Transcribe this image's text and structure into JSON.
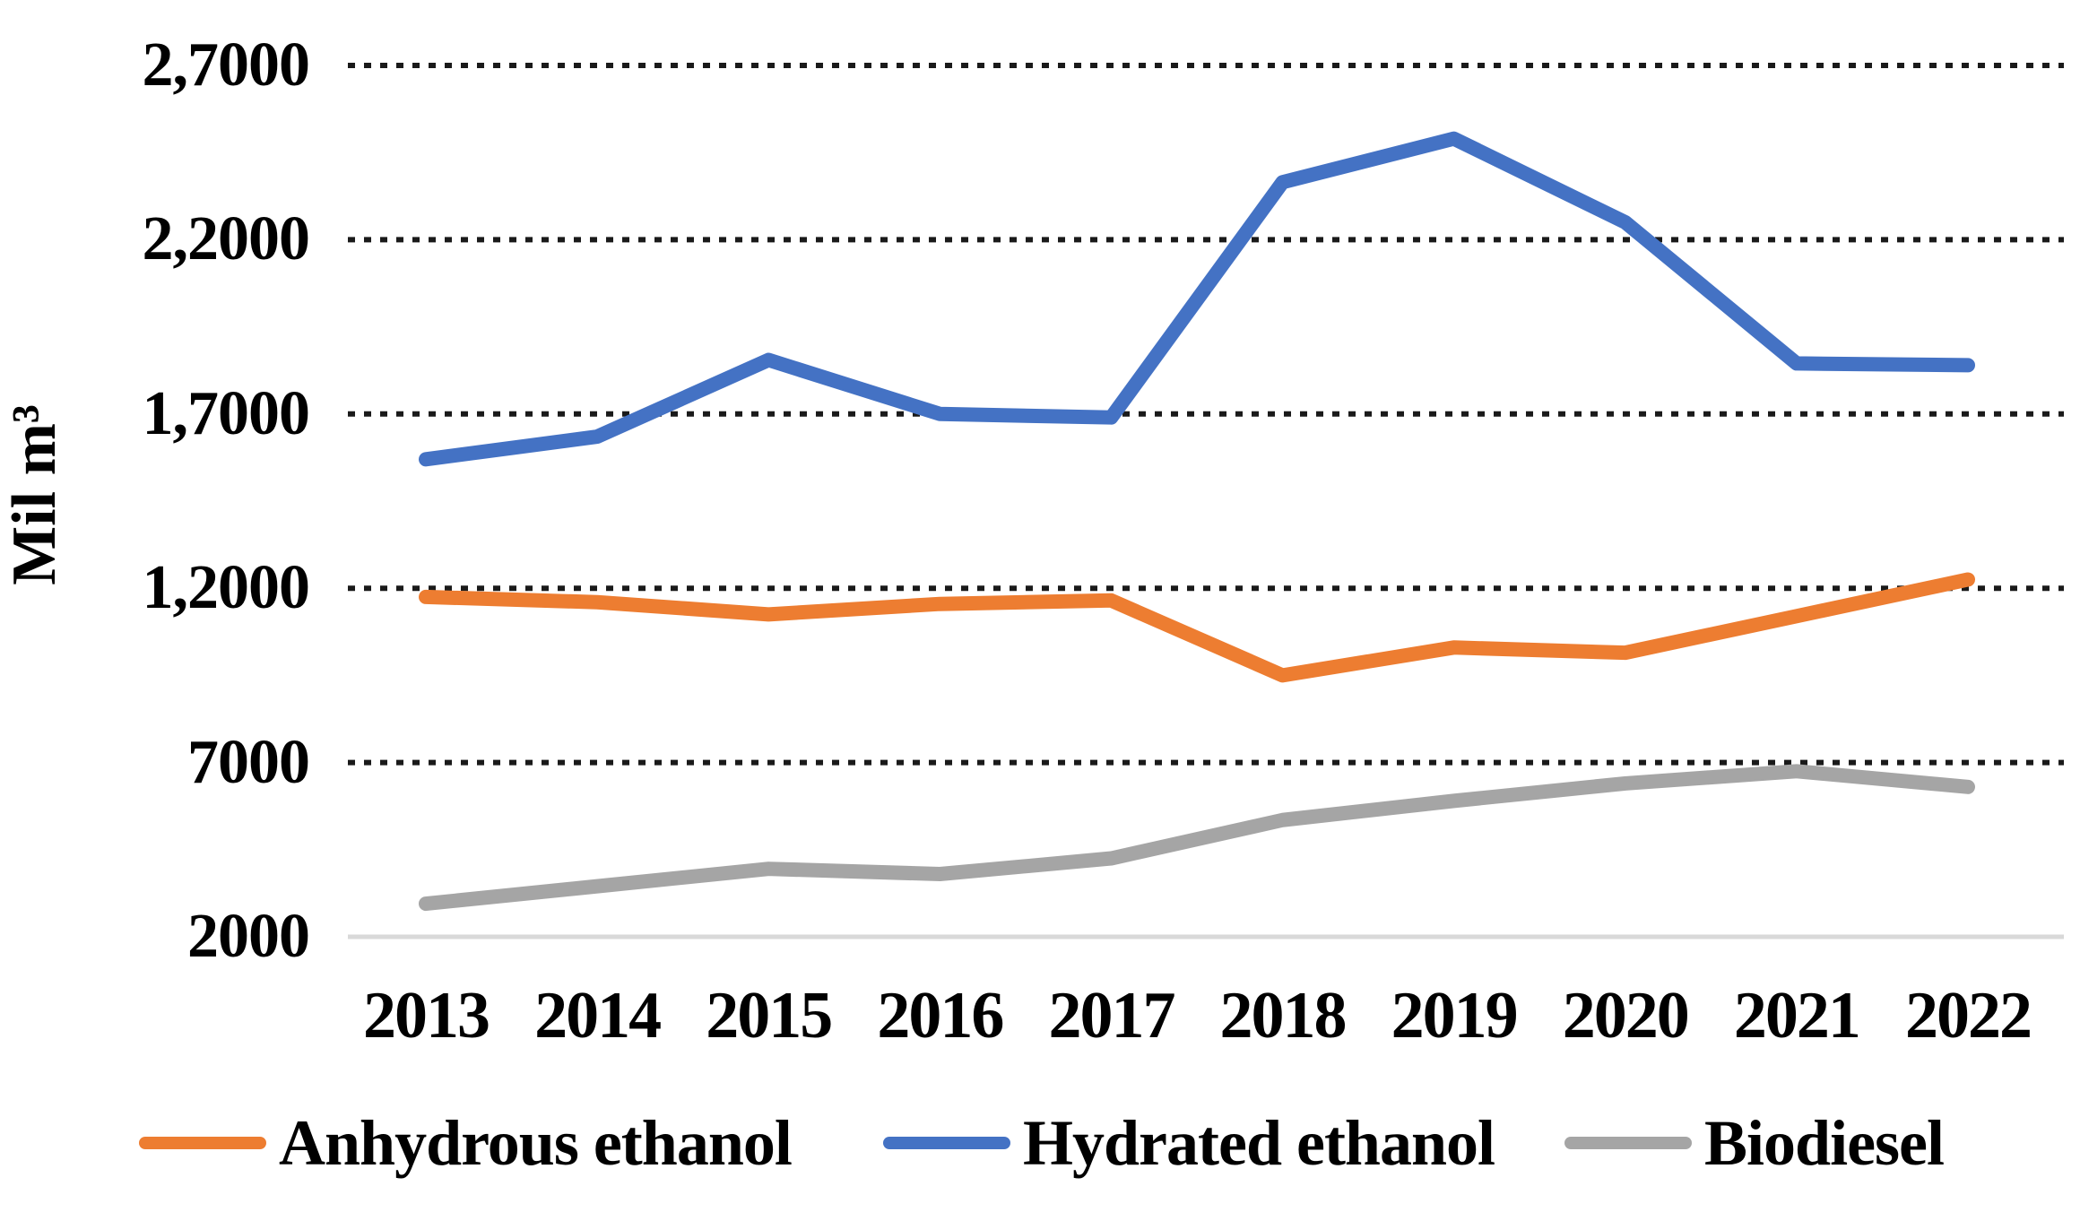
{
  "chart_data": {
    "type": "line",
    "title": "",
    "xlabel": "",
    "ylabel": "Mil m³",
    "categories": [
      "2013",
      "2014",
      "2015",
      "2016",
      "2017",
      "2018",
      "2019",
      "2020",
      "2021",
      "2022"
    ],
    "series": [
      {
        "name": "Anhydrous ethanol",
        "color": "#ED7D31",
        "values": [
          11750,
          11600,
          11250,
          11550,
          11650,
          9500,
          10300,
          10150,
          11200,
          12250
        ]
      },
      {
        "name": "Hydrated ethanol",
        "color": "#4472C4",
        "values": [
          15700,
          16350,
          18550,
          17000,
          16900,
          23650,
          24900,
          22500,
          18450,
          18400
        ]
      },
      {
        "name": "Biodiesel",
        "color": "#A5A5A5",
        "values": [
          2950,
          3450,
          3950,
          3800,
          4250,
          5350,
          5900,
          6400,
          6750,
          6300
        ]
      }
    ],
    "y_axis": {
      "min": 2000,
      "max": 27000,
      "tick_step": 5000,
      "ticks": [
        {
          "value": 27000,
          "label": "2,7000"
        },
        {
          "value": 22000,
          "label": "2,2000"
        },
        {
          "value": 17000,
          "label": "1,7000"
        },
        {
          "value": 12000,
          "label": "1,2000"
        },
        {
          "value": 7000,
          "label": "7000"
        },
        {
          "value": 2000,
          "label": "2000"
        }
      ]
    },
    "grid": "horizontal-dashed",
    "gridline_color": "#1a1a1a",
    "baseline_color": "#d9d9d9",
    "legend_position": "bottom"
  }
}
